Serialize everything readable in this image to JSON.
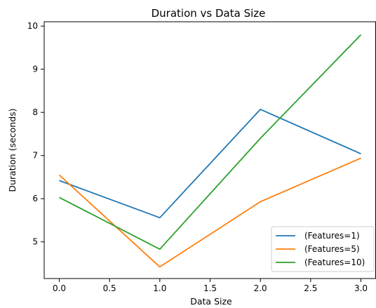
{
  "chart_data": {
    "type": "line",
    "title": "Duration vs Data Size",
    "xlabel": "Data Size",
    "ylabel": "Duration (seconds)",
    "x": [
      0,
      1,
      2,
      3
    ],
    "xlim": [
      -0.15,
      3.15
    ],
    "ylim": [
      4.15,
      10.1
    ],
    "xticks": [
      "0.0",
      "0.5",
      "1.0",
      "1.5",
      "2.0",
      "2.5",
      "3.0"
    ],
    "xtick_values": [
      0,
      0.5,
      1,
      1.5,
      2,
      2.5,
      3
    ],
    "yticks": [
      "5",
      "6",
      "7",
      "8",
      "9",
      "10"
    ],
    "ytick_values": [
      5,
      6,
      7,
      8,
      9,
      10
    ],
    "grid": false,
    "legend_position": "lower-right",
    "series": [
      {
        "name": "(Features=1)",
        "color": "#1f77b4",
        "values": [
          6.42,
          5.56,
          8.07,
          7.04
        ]
      },
      {
        "name": "(Features=5)",
        "color": "#ff7f0e",
        "values": [
          6.55,
          4.42,
          5.93,
          6.94
        ]
      },
      {
        "name": "(Features=10)",
        "color": "#2ca02c",
        "values": [
          6.03,
          4.83,
          7.4,
          9.8
        ]
      }
    ]
  }
}
